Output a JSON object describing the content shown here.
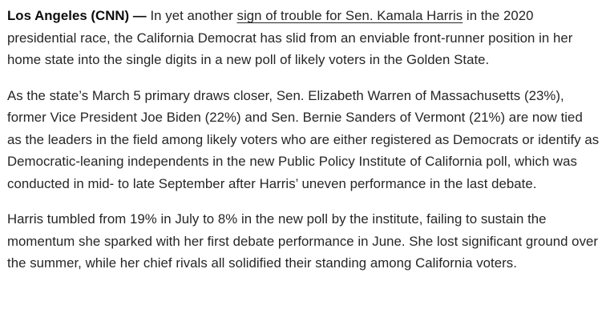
{
  "article": {
    "paragraphs": [
      {
        "dateline": "Los Angeles (CNN) —",
        "before_link": " In yet another ",
        "link_text": "sign of trouble for Sen. Kamala Harris",
        "after_link": " in the 2020 presidential race, the California Democrat has slid from an enviable front-runner position in her home state into the single digits in a new poll of likely voters in the Golden State."
      },
      {
        "text": "As the state’s March 5 primary draws closer, Sen. Elizabeth Warren of Massachusetts (23%), former Vice President Joe Biden (22%) and Sen. Bernie Sanders of Vermont (21%) are now tied as the leaders in the field among likely voters who are either registered as Democrats or identify as Democratic-leaning independents in the new Public Policy Institute of California poll, which was conducted in mid- to late September after Harris’ uneven performance in the last debate."
      },
      {
        "text": "Harris tumbled from 19% in July to 8% in the new poll by the institute, failing to sustain the momentum she sparked with her first debate performance in June. She lost significant ground over the summer, while her chief rivals all solidified their standing among California voters."
      }
    ]
  }
}
